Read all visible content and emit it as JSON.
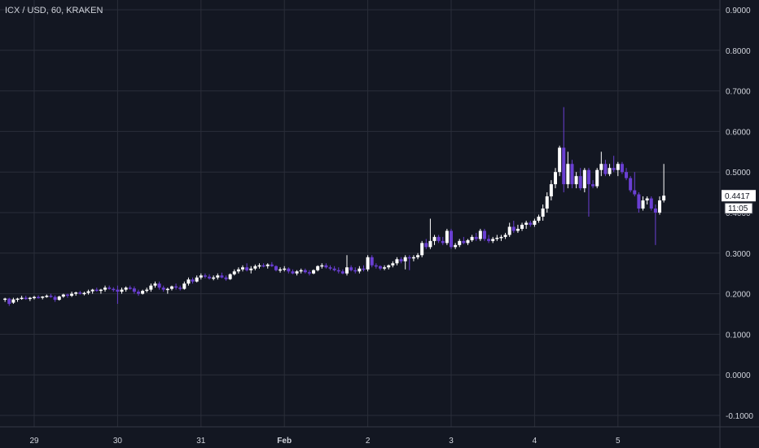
{
  "chart_data": {
    "type": "candlestick",
    "title": "ICX / USD, 60, KRAKEN",
    "ylim": [
      -0.13,
      0.92
    ],
    "y_ticks": [
      "0.9000",
      "0.8000",
      "0.7000",
      "0.6000",
      "0.5000",
      "0.4000",
      "0.3000",
      "0.2000",
      "0.1000",
      "0.0000",
      "-0.1000"
    ],
    "x_ticks": [
      {
        "label": "29",
        "day": 0.0,
        "bold": false
      },
      {
        "label": "30",
        "day": 1.0,
        "bold": false
      },
      {
        "label": "31",
        "day": 2.0,
        "bold": false
      },
      {
        "label": "Feb",
        "day": 3.0,
        "bold": true
      },
      {
        "label": "2",
        "day": 4.0,
        "bold": false
      },
      {
        "label": "3",
        "day": 5.0,
        "bold": false
      },
      {
        "label": "4",
        "day": 6.0,
        "bold": false
      },
      {
        "label": "5",
        "day": 7.0,
        "bold": false
      }
    ],
    "last_price": "0.4417",
    "countdown": "11:05",
    "up_color": "#ffffff",
    "down_color": "#6a3fd3",
    "background": "#131722",
    "grid": true,
    "candles": [
      [
        -0.35,
        0.185,
        0.19,
        0.18,
        0.188
      ],
      [
        -0.3,
        0.188,
        0.19,
        0.17,
        0.175
      ],
      [
        -0.25,
        0.178,
        0.19,
        0.175,
        0.186
      ],
      [
        -0.2,
        0.186,
        0.19,
        0.18,
        0.188
      ],
      [
        -0.15,
        0.188,
        0.195,
        0.185,
        0.19
      ],
      [
        -0.1,
        0.19,
        0.195,
        0.185,
        0.187
      ],
      [
        -0.05,
        0.187,
        0.192,
        0.182,
        0.19
      ],
      [
        0.0,
        0.19,
        0.195,
        0.186,
        0.192
      ],
      [
        0.05,
        0.192,
        0.196,
        0.188,
        0.19
      ],
      [
        0.1,
        0.19,
        0.194,
        0.186,
        0.193
      ],
      [
        0.15,
        0.193,
        0.198,
        0.19,
        0.195
      ],
      [
        0.2,
        0.195,
        0.2,
        0.19,
        0.192
      ],
      [
        0.25,
        0.192,
        0.196,
        0.18,
        0.185
      ],
      [
        0.3,
        0.185,
        0.195,
        0.183,
        0.193
      ],
      [
        0.35,
        0.193,
        0.2,
        0.19,
        0.198
      ],
      [
        0.4,
        0.198,
        0.2,
        0.19,
        0.195
      ],
      [
        0.45,
        0.195,
        0.205,
        0.192,
        0.2
      ],
      [
        0.5,
        0.2,
        0.205,
        0.195,
        0.203
      ],
      [
        0.55,
        0.203,
        0.207,
        0.198,
        0.2
      ],
      [
        0.6,
        0.2,
        0.205,
        0.196,
        0.202
      ],
      [
        0.65,
        0.202,
        0.21,
        0.198,
        0.206
      ],
      [
        0.7,
        0.206,
        0.212,
        0.2,
        0.21
      ],
      [
        0.75,
        0.21,
        0.215,
        0.205,
        0.207
      ],
      [
        0.8,
        0.207,
        0.212,
        0.2,
        0.21
      ],
      [
        0.85,
        0.21,
        0.22,
        0.205,
        0.215
      ],
      [
        0.9,
        0.215,
        0.22,
        0.21,
        0.212
      ],
      [
        0.95,
        0.212,
        0.216,
        0.205,
        0.21
      ],
      [
        1.0,
        0.21,
        0.22,
        0.175,
        0.205
      ],
      [
        1.05,
        0.205,
        0.215,
        0.2,
        0.21
      ],
      [
        1.1,
        0.21,
        0.218,
        0.205,
        0.215
      ],
      [
        1.15,
        0.215,
        0.22,
        0.21,
        0.213
      ],
      [
        1.2,
        0.213,
        0.218,
        0.2,
        0.205
      ],
      [
        1.25,
        0.205,
        0.21,
        0.195,
        0.2
      ],
      [
        1.3,
        0.2,
        0.21,
        0.198,
        0.207
      ],
      [
        1.35,
        0.207,
        0.215,
        0.203,
        0.21
      ],
      [
        1.4,
        0.21,
        0.225,
        0.205,
        0.22
      ],
      [
        1.45,
        0.22,
        0.23,
        0.215,
        0.225
      ],
      [
        1.5,
        0.225,
        0.23,
        0.21,
        0.215
      ],
      [
        1.55,
        0.215,
        0.22,
        0.205,
        0.21
      ],
      [
        1.6,
        0.21,
        0.215,
        0.2,
        0.212
      ],
      [
        1.65,
        0.212,
        0.22,
        0.208,
        0.218
      ],
      [
        1.7,
        0.218,
        0.225,
        0.21,
        0.215
      ],
      [
        1.75,
        0.215,
        0.22,
        0.208,
        0.212
      ],
      [
        1.8,
        0.212,
        0.23,
        0.21,
        0.225
      ],
      [
        1.85,
        0.225,
        0.24,
        0.22,
        0.235
      ],
      [
        1.9,
        0.235,
        0.24,
        0.225,
        0.23
      ],
      [
        1.95,
        0.23,
        0.245,
        0.228,
        0.24
      ],
      [
        2.0,
        0.24,
        0.25,
        0.235,
        0.245
      ],
      [
        2.05,
        0.245,
        0.25,
        0.238,
        0.242
      ],
      [
        2.1,
        0.242,
        0.248,
        0.235,
        0.238
      ],
      [
        2.15,
        0.238,
        0.245,
        0.233,
        0.24
      ],
      [
        2.2,
        0.24,
        0.25,
        0.235,
        0.245
      ],
      [
        2.25,
        0.245,
        0.252,
        0.238,
        0.24
      ],
      [
        2.3,
        0.24,
        0.245,
        0.232,
        0.236
      ],
      [
        2.35,
        0.236,
        0.25,
        0.234,
        0.248
      ],
      [
        2.4,
        0.248,
        0.26,
        0.245,
        0.255
      ],
      [
        2.45,
        0.255,
        0.265,
        0.25,
        0.26
      ],
      [
        2.5,
        0.26,
        0.27,
        0.255,
        0.265
      ],
      [
        2.55,
        0.265,
        0.275,
        0.255,
        0.258
      ],
      [
        2.6,
        0.258,
        0.268,
        0.25,
        0.262
      ],
      [
        2.65,
        0.262,
        0.272,
        0.258,
        0.268
      ],
      [
        2.7,
        0.268,
        0.275,
        0.262,
        0.27
      ],
      [
        2.75,
        0.27,
        0.275,
        0.265,
        0.268
      ],
      [
        2.8,
        0.268,
        0.275,
        0.262,
        0.272
      ],
      [
        2.85,
        0.272,
        0.278,
        0.266,
        0.268
      ],
      [
        2.9,
        0.268,
        0.27,
        0.255,
        0.258
      ],
      [
        2.95,
        0.258,
        0.265,
        0.252,
        0.26
      ],
      [
        3.0,
        0.26,
        0.268,
        0.255,
        0.262
      ],
      [
        3.05,
        0.262,
        0.265,
        0.25,
        0.255
      ],
      [
        3.1,
        0.255,
        0.26,
        0.248,
        0.25
      ],
      [
        3.15,
        0.25,
        0.258,
        0.245,
        0.255
      ],
      [
        3.2,
        0.255,
        0.262,
        0.25,
        0.258
      ],
      [
        3.25,
        0.258,
        0.262,
        0.25,
        0.253
      ],
      [
        3.3,
        0.253,
        0.258,
        0.245,
        0.25
      ],
      [
        3.35,
        0.25,
        0.26,
        0.248,
        0.258
      ],
      [
        3.4,
        0.258,
        0.27,
        0.255,
        0.268
      ],
      [
        3.45,
        0.268,
        0.275,
        0.262,
        0.27
      ],
      [
        3.5,
        0.27,
        0.275,
        0.262,
        0.265
      ],
      [
        3.55,
        0.265,
        0.27,
        0.258,
        0.262
      ],
      [
        3.6,
        0.262,
        0.268,
        0.255,
        0.258
      ],
      [
        3.65,
        0.258,
        0.265,
        0.25,
        0.255
      ],
      [
        3.7,
        0.255,
        0.26,
        0.248,
        0.25
      ],
      [
        3.75,
        0.25,
        0.295,
        0.245,
        0.265
      ],
      [
        3.8,
        0.265,
        0.27,
        0.255,
        0.258
      ],
      [
        3.85,
        0.258,
        0.265,
        0.25,
        0.255
      ],
      [
        3.9,
        0.255,
        0.268,
        0.25,
        0.262
      ],
      [
        3.95,
        0.262,
        0.27,
        0.255,
        0.26
      ],
      [
        4.0,
        0.26,
        0.295,
        0.255,
        0.29
      ],
      [
        4.05,
        0.29,
        0.295,
        0.265,
        0.27
      ],
      [
        4.1,
        0.27,
        0.275,
        0.262,
        0.268
      ],
      [
        4.15,
        0.268,
        0.27,
        0.258,
        0.262
      ],
      [
        4.2,
        0.262,
        0.27,
        0.258,
        0.265
      ],
      [
        4.25,
        0.265,
        0.272,
        0.26,
        0.27
      ],
      [
        4.3,
        0.27,
        0.28,
        0.265,
        0.275
      ],
      [
        4.35,
        0.275,
        0.29,
        0.27,
        0.285
      ],
      [
        4.4,
        0.285,
        0.29,
        0.275,
        0.28
      ],
      [
        4.45,
        0.28,
        0.295,
        0.26,
        0.29
      ],
      [
        4.5,
        0.29,
        0.295,
        0.258,
        0.288
      ],
      [
        4.55,
        0.288,
        0.295,
        0.28,
        0.29
      ],
      [
        4.6,
        0.29,
        0.3,
        0.285,
        0.295
      ],
      [
        4.65,
        0.295,
        0.33,
        0.29,
        0.325
      ],
      [
        4.7,
        0.325,
        0.335,
        0.31,
        0.315
      ],
      [
        4.75,
        0.315,
        0.385,
        0.31,
        0.33
      ],
      [
        4.8,
        0.33,
        0.345,
        0.32,
        0.34
      ],
      [
        4.85,
        0.34,
        0.345,
        0.325,
        0.33
      ],
      [
        4.9,
        0.33,
        0.34,
        0.32,
        0.325
      ],
      [
        4.95,
        0.325,
        0.36,
        0.32,
        0.355
      ],
      [
        5.0,
        0.355,
        0.36,
        0.31,
        0.315
      ],
      [
        5.05,
        0.315,
        0.325,
        0.31,
        0.32
      ],
      [
        5.1,
        0.32,
        0.335,
        0.315,
        0.33
      ],
      [
        5.15,
        0.33,
        0.34,
        0.322,
        0.325
      ],
      [
        5.2,
        0.325,
        0.335,
        0.32,
        0.332
      ],
      [
        5.25,
        0.332,
        0.345,
        0.328,
        0.34
      ],
      [
        5.3,
        0.34,
        0.35,
        0.33,
        0.335
      ],
      [
        5.35,
        0.335,
        0.36,
        0.33,
        0.355
      ],
      [
        5.4,
        0.355,
        0.36,
        0.33,
        0.335
      ],
      [
        5.45,
        0.335,
        0.345,
        0.325,
        0.33
      ],
      [
        5.5,
        0.33,
        0.34,
        0.325,
        0.335
      ],
      [
        5.55,
        0.335,
        0.345,
        0.33,
        0.338
      ],
      [
        5.6,
        0.338,
        0.345,
        0.33,
        0.34
      ],
      [
        5.65,
        0.34,
        0.35,
        0.335,
        0.345
      ],
      [
        5.7,
        0.345,
        0.375,
        0.34,
        0.365
      ],
      [
        5.75,
        0.365,
        0.38,
        0.35,
        0.355
      ],
      [
        5.8,
        0.355,
        0.37,
        0.35,
        0.36
      ],
      [
        5.85,
        0.36,
        0.375,
        0.355,
        0.37
      ],
      [
        5.9,
        0.37,
        0.38,
        0.36,
        0.375
      ],
      [
        5.95,
        0.375,
        0.38,
        0.365,
        0.37
      ],
      [
        6.0,
        0.37,
        0.385,
        0.365,
        0.38
      ],
      [
        6.05,
        0.38,
        0.395,
        0.375,
        0.39
      ],
      [
        6.1,
        0.39,
        0.42,
        0.38,
        0.41
      ],
      [
        6.15,
        0.41,
        0.45,
        0.4,
        0.44
      ],
      [
        6.2,
        0.44,
        0.48,
        0.43,
        0.47
      ],
      [
        6.25,
        0.47,
        0.51,
        0.46,
        0.5
      ],
      [
        6.3,
        0.5,
        0.565,
        0.49,
        0.56
      ],
      [
        6.35,
        0.56,
        0.66,
        0.45,
        0.47
      ],
      [
        6.4,
        0.47,
        0.55,
        0.46,
        0.52
      ],
      [
        6.45,
        0.52,
        0.53,
        0.46,
        0.47
      ],
      [
        6.5,
        0.47,
        0.5,
        0.46,
        0.49
      ],
      [
        6.55,
        0.49,
        0.51,
        0.455,
        0.46
      ],
      [
        6.6,
        0.46,
        0.51,
        0.45,
        0.505
      ],
      [
        6.65,
        0.505,
        0.51,
        0.39,
        0.47
      ],
      [
        6.7,
        0.47,
        0.48,
        0.46,
        0.465
      ],
      [
        6.75,
        0.465,
        0.51,
        0.46,
        0.505
      ],
      [
        6.8,
        0.505,
        0.55,
        0.49,
        0.52
      ],
      [
        6.85,
        0.52,
        0.53,
        0.49,
        0.495
      ],
      [
        6.9,
        0.495,
        0.52,
        0.49,
        0.51
      ],
      [
        6.95,
        0.51,
        0.54,
        0.5,
        0.505
      ],
      [
        7.0,
        0.505,
        0.525,
        0.49,
        0.52
      ],
      [
        7.05,
        0.52,
        0.525,
        0.495,
        0.5
      ],
      [
        7.1,
        0.5,
        0.51,
        0.48,
        0.485
      ],
      [
        7.15,
        0.485,
        0.49,
        0.45,
        0.455
      ],
      [
        7.2,
        0.455,
        0.5,
        0.44,
        0.445
      ],
      [
        7.25,
        0.445,
        0.45,
        0.4,
        0.41
      ],
      [
        7.3,
        0.41,
        0.44,
        0.405,
        0.43
      ],
      [
        7.35,
        0.43,
        0.44,
        0.42,
        0.435
      ],
      [
        7.4,
        0.435,
        0.44,
        0.405,
        0.41
      ],
      [
        7.45,
        0.41,
        0.42,
        0.32,
        0.4
      ],
      [
        7.5,
        0.4,
        0.44,
        0.395,
        0.43
      ],
      [
        7.55,
        0.43,
        0.52,
        0.425,
        0.4417
      ]
    ]
  }
}
